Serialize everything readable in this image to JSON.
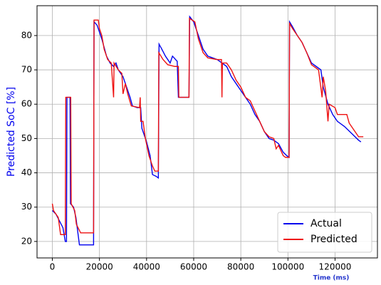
{
  "chart_data": {
    "type": "line",
    "ylabel": "Predicted SoC [%]",
    "xlabel": "Time (ms)",
    "xlim": [
      -6500,
      138000
    ],
    "ylim": [
      15.2,
      88.7
    ],
    "xticks": [
      0,
      20000,
      40000,
      60000,
      80000,
      100000,
      120000
    ],
    "yticks": [
      20,
      30,
      40,
      50,
      60,
      70,
      80
    ],
    "grid": true,
    "legend": "lower right",
    "series": [
      {
        "name": "Actual",
        "color": "#0000ee",
        "x": [
          0,
          1500,
          3000,
          4500,
          5500,
          6000,
          6200,
          7500,
          7700,
          9000,
          10000,
          11500,
          17500,
          17700,
          19000,
          21000,
          23000,
          24500,
          26000,
          27000,
          28000,
          30000,
          31500,
          33000,
          34000,
          36000,
          37500,
          38000,
          40000,
          41500,
          42500,
          44000,
          45000,
          45300,
          46500,
          48000,
          50000,
          51000,
          53000,
          53500,
          58000,
          58300,
          60000,
          62000,
          64000,
          66000,
          68000,
          70000,
          72000,
          74000,
          76000,
          78000,
          80000,
          82000,
          84000,
          86000,
          88000,
          90000,
          92000,
          94000,
          96000,
          98000,
          99500,
          100500,
          100700,
          102000,
          104000,
          106000,
          108000,
          110000,
          112000,
          114000,
          115000,
          117000,
          119000,
          121000,
          124000,
          127000,
          130000,
          131000
        ],
        "values": [
          29,
          28,
          26,
          24,
          20,
          20,
          62,
          62,
          31,
          30,
          27,
          19,
          19,
          84,
          83,
          79,
          74,
          72,
          71,
          72,
          70,
          68,
          65,
          62,
          59.5,
          59,
          59,
          53,
          49,
          45,
          39.5,
          39,
          38.5,
          77.5,
          76,
          74,
          72,
          74,
          72.5,
          62,
          62,
          85.5,
          84,
          80,
          76,
          74,
          73.5,
          73,
          72,
          71,
          68,
          66,
          64,
          62,
          60,
          57,
          55,
          52,
          50,
          49.5,
          48.5,
          46,
          45,
          44.5,
          84,
          82.5,
          80,
          78,
          75,
          72,
          71,
          70,
          65,
          60,
          57,
          55,
          53.5,
          51.5,
          49.5,
          49
        ]
      },
      {
        "name": "Predicted",
        "color": "#ee1111",
        "x": [
          0,
          500,
          1500,
          2500,
          3500,
          5500,
          5700,
          7800,
          8000,
          9500,
          10200,
          12000,
          17500,
          17700,
          19500,
          20000,
          21000,
          22000,
          23500,
          25000,
          26000,
          26200,
          28000,
          29500,
          30000,
          31000,
          32000,
          33500,
          37000,
          37300,
          37500,
          38500,
          39500,
          41000,
          42500,
          43500,
          45000,
          45200,
          47000,
          49000,
          52000,
          53500,
          53700,
          58000,
          58200,
          60500,
          62000,
          64000,
          66000,
          70000,
          71800,
          72000,
          72200,
          74000,
          76000,
          78000,
          80000,
          82000,
          84000,
          86000,
          88000,
          90000,
          92000,
          94000,
          95000,
          96000,
          98000,
          99000,
          100500,
          100700,
          102000,
          104000,
          106000,
          108000,
          110000,
          113000,
          114500,
          115000,
          116000,
          117000,
          117500,
          120000,
          121000,
          125000,
          126000,
          128000,
          130000,
          132000
        ],
        "values": [
          31,
          29,
          28,
          27,
          22,
          22,
          62,
          62,
          31,
          29,
          25,
          22.5,
          22.5,
          84.5,
          84.5,
          82,
          80,
          76,
          73,
          72,
          62,
          72,
          70,
          69,
          63,
          66,
          63,
          59.5,
          59,
          62,
          55,
          55,
          50,
          45,
          42,
          40.5,
          40.5,
          75,
          73,
          71.5,
          71,
          71,
          62,
          62,
          85,
          84,
          79,
          75,
          73.5,
          73,
          73,
          62,
          72,
          72,
          70,
          67,
          65,
          62,
          61,
          58,
          55,
          52,
          50.5,
          50,
          47,
          48,
          45,
          44.5,
          44.5,
          83.5,
          82,
          80,
          78,
          75,
          71.5,
          70,
          62,
          68,
          64,
          55,
          60,
          59,
          57,
          57,
          54.5,
          52.5,
          50.5,
          50.5
        ]
      }
    ]
  }
}
